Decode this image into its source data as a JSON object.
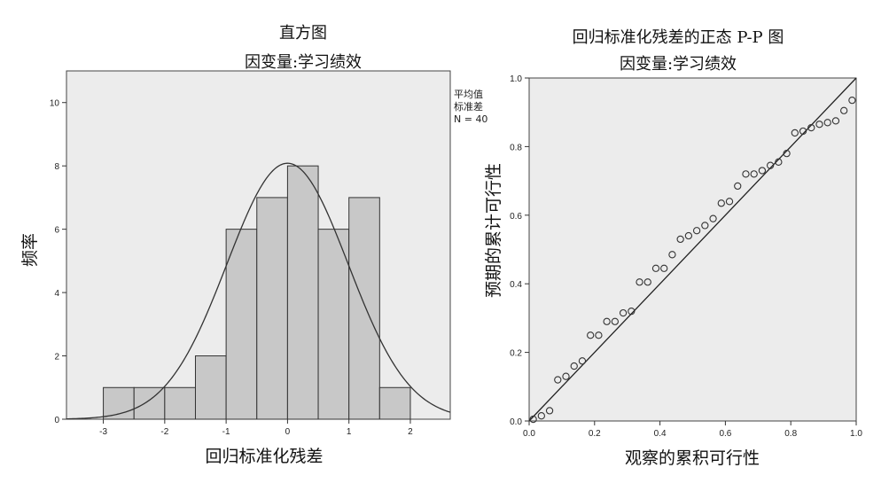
{
  "chart_data": [
    {
      "type": "bar",
      "title": "直方图",
      "subtitle": "因变量:学习绩效",
      "xlabel": "回归标准化残差",
      "ylabel": "频率",
      "bin_edges": [
        -3.0,
        -2.5,
        -2.0,
        -1.5,
        -1.0,
        -0.5,
        0.0,
        0.5,
        1.0,
        1.5,
        2.0
      ],
      "values": [
        1,
        1,
        1,
        2,
        6,
        7,
        8,
        6,
        7,
        1
      ],
      "xlim": [
        -3.6,
        2.65
      ],
      "ylim": [
        0,
        11
      ],
      "xticks": [
        -3,
        -2,
        -1,
        0,
        1,
        2
      ],
      "yticks": [
        0,
        2,
        4,
        6,
        8,
        10
      ],
      "normal_curve": {
        "mean": 0.0,
        "sd": 0.987,
        "n": 40,
        "bin_width": 0.5
      },
      "legend": [
        "平均值",
        "标准差",
        "N = 40"
      ],
      "legend_position": "top-right",
      "grid": false
    },
    {
      "type": "scatter",
      "title": "回归标准化残差的正态 P-P 图",
      "subtitle": "因变量:学习绩效",
      "xlabel": "观察的累积可行性",
      "ylabel": "预期的累计可行性",
      "xlim": [
        0.0,
        1.0
      ],
      "ylim": [
        0.0,
        1.0
      ],
      "xticks": [
        "0.0",
        "0.2",
        "0.4",
        "0.6",
        "0.8",
        "1.0"
      ],
      "yticks": [
        "0.0",
        "0.2",
        "0.4",
        "0.6",
        "0.8",
        "1.0"
      ],
      "reference_line": [
        [
          0,
          0
        ],
        [
          1,
          1
        ]
      ],
      "points": [
        [
          0.0125,
          0.005
        ],
        [
          0.0375,
          0.015
        ],
        [
          0.0625,
          0.03
        ],
        [
          0.0875,
          0.12
        ],
        [
          0.1125,
          0.13
        ],
        [
          0.1375,
          0.16
        ],
        [
          0.1625,
          0.175
        ],
        [
          0.1875,
          0.25
        ],
        [
          0.2125,
          0.25
        ],
        [
          0.2375,
          0.29
        ],
        [
          0.2625,
          0.29
        ],
        [
          0.2875,
          0.315
        ],
        [
          0.3125,
          0.32
        ],
        [
          0.3375,
          0.405
        ],
        [
          0.3625,
          0.405
        ],
        [
          0.3875,
          0.445
        ],
        [
          0.4125,
          0.445
        ],
        [
          0.4375,
          0.485
        ],
        [
          0.4625,
          0.53
        ],
        [
          0.4875,
          0.54
        ],
        [
          0.5125,
          0.555
        ],
        [
          0.5375,
          0.57
        ],
        [
          0.5625,
          0.59
        ],
        [
          0.5875,
          0.635
        ],
        [
          0.6125,
          0.64
        ],
        [
          0.6375,
          0.685
        ],
        [
          0.6625,
          0.72
        ],
        [
          0.6875,
          0.72
        ],
        [
          0.7125,
          0.73
        ],
        [
          0.7375,
          0.745
        ],
        [
          0.7625,
          0.755
        ],
        [
          0.7875,
          0.78
        ],
        [
          0.8125,
          0.84
        ],
        [
          0.8375,
          0.845
        ],
        [
          0.8625,
          0.855
        ],
        [
          0.8875,
          0.865
        ],
        [
          0.9125,
          0.87
        ],
        [
          0.9375,
          0.875
        ],
        [
          0.9625,
          0.905
        ],
        [
          0.9875,
          0.935
        ]
      ],
      "grid": false
    }
  ]
}
